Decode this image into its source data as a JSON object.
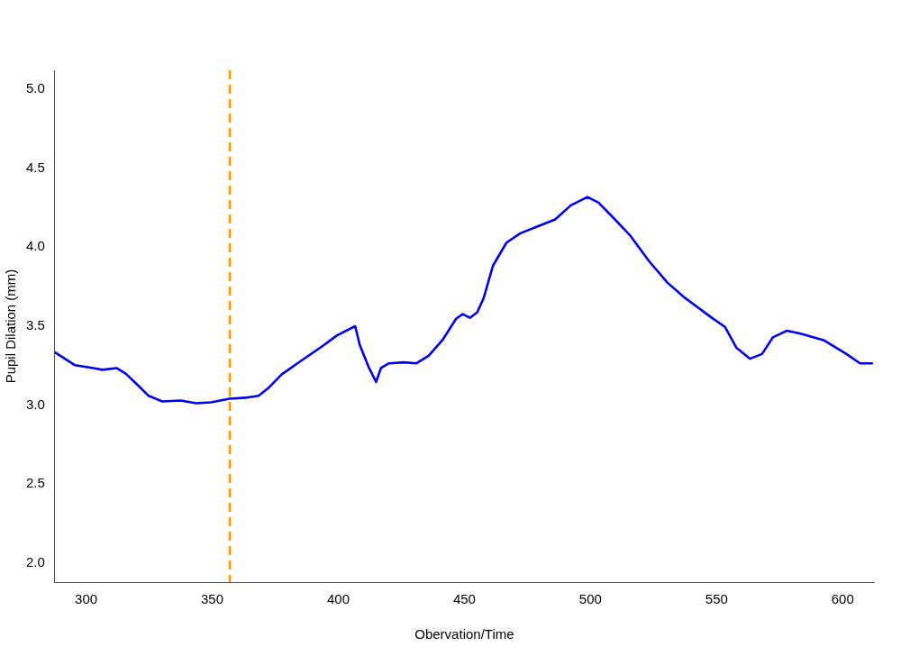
{
  "chart_data": {
    "type": "line",
    "xlabel": "Obervation/Time",
    "ylabel": "Pupil Dilation (mm)",
    "xlim": [
      287.6,
      612.4
    ],
    "xticks": [
      300,
      350,
      400,
      450,
      500,
      550,
      600
    ],
    "ylim": [
      1.88,
      5.12
    ],
    "yticks": [
      {
        "value": 2,
        "label": "2.0"
      },
      2.5,
      {
        "value": 3,
        "label": "3.0"
      },
      3.5,
      {
        "value": 4,
        "label": "4.0"
      },
      4.5,
      {
        "value": 5,
        "label": "5.0"
      }
    ],
    "grid": false,
    "legend": false,
    "marker": "none",
    "line_style": "solid",
    "ref_lines": [
      {
        "axis": "x",
        "value": 357,
        "color": "#ff9900",
        "line_style": "dashed"
      }
    ],
    "series": [
      {
        "color": "#0000ee",
        "x": [
          287.6,
          295.6,
          302.9,
          306.6,
          312,
          315.7,
          321.1,
          324.8,
          330.2,
          337.5,
          343.7,
          349.5,
          356.8,
          363,
          368.4,
          372.1,
          377.5,
          384.8,
          393.9,
          399.4,
          406.7,
          408.5,
          412.2,
          415,
          416.9,
          420.1,
          426,
          431,
          435.8,
          441.3,
          446.7,
          449.3,
          452.2,
          455.1,
          457.6,
          461.3,
          466.7,
          472.2,
          479.5,
          486,
          492.2,
          498.8,
          503.2,
          509.7,
          515.9,
          523.2,
          530.5,
          537.7,
          547.6,
          553.4,
          557.8,
          563.2,
          568,
          572.3,
          577.8,
          583.3,
          592.4,
          601.5,
          606.9,
          611.6
        ],
        "values": [
          3.335,
          3.253,
          3.235,
          3.224,
          3.235,
          3.2,
          3.118,
          3.059,
          3.024,
          3.029,
          3.012,
          3.018,
          3.041,
          3.047,
          3.059,
          3.106,
          3.194,
          3.276,
          3.376,
          3.441,
          3.5,
          3.382,
          3.235,
          3.147,
          3.235,
          3.265,
          3.271,
          3.265,
          3.312,
          3.412,
          3.547,
          3.576,
          3.553,
          3.588,
          3.676,
          3.882,
          4.029,
          4.088,
          4.135,
          4.176,
          4.265,
          4.318,
          4.282,
          4.176,
          4.071,
          3.912,
          3.776,
          3.676,
          3.559,
          3.494,
          3.365,
          3.294,
          3.324,
          3.429,
          3.471,
          3.453,
          3.412,
          3.324,
          3.265,
          3.265
        ]
      }
    ]
  }
}
